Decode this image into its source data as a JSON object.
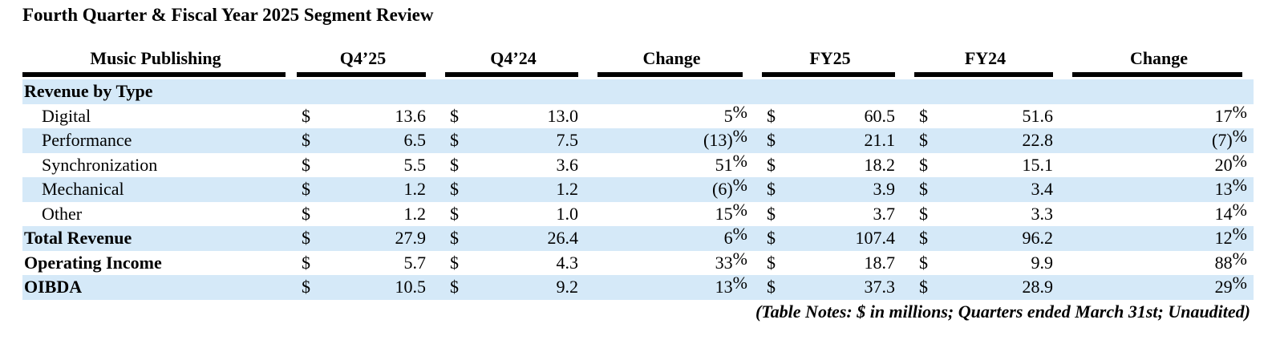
{
  "title": "Fourth Quarter & Fiscal Year 2025 Segment Review",
  "colors": {
    "row_shade": "#D5E9F8",
    "rule": "#000000",
    "background": "#FFFFFF"
  },
  "table": {
    "currency_symbol": "$",
    "columns": [
      {
        "key": "label",
        "label": "Music Publishing",
        "currency": false
      },
      {
        "key": "q4_25",
        "label": "Q4’25",
        "currency": true
      },
      {
        "key": "q4_24",
        "label": "Q4’24",
        "currency": true
      },
      {
        "key": "change_q",
        "label": "Change",
        "currency": false
      },
      {
        "key": "fy25",
        "label": "FY25",
        "currency": true
      },
      {
        "key": "fy24",
        "label": "FY24",
        "currency": true
      },
      {
        "key": "change_fy",
        "label": "Change",
        "currency": false
      }
    ],
    "rows": [
      {
        "label": "Revenue by Type",
        "style": "section",
        "values": [
          "",
          "",
          "",
          "",
          "",
          ""
        ]
      },
      {
        "label": "Digital",
        "style": "item",
        "values": [
          "13.6",
          "13.0",
          "5%",
          "60.5",
          "51.6",
          "17%"
        ]
      },
      {
        "label": "Performance",
        "style": "item",
        "values": [
          "6.5",
          "7.5",
          "(13)%",
          "21.1",
          "22.8",
          "(7)%"
        ]
      },
      {
        "label": "Synchronization",
        "style": "item",
        "values": [
          "5.5",
          "3.6",
          "51%",
          "18.2",
          "15.1",
          "20%"
        ]
      },
      {
        "label": "Mechanical",
        "style": "item",
        "values": [
          "1.2",
          "1.2",
          "(6)%",
          "3.9",
          "3.4",
          "13%"
        ]
      },
      {
        "label": "Other",
        "style": "item",
        "values": [
          "1.2",
          "1.0",
          "15%",
          "3.7",
          "3.3",
          "14%"
        ]
      },
      {
        "label": "Total Revenue",
        "style": "total",
        "values": [
          "27.9",
          "26.4",
          "6%",
          "107.4",
          "96.2",
          "12%"
        ]
      },
      {
        "label": "Operating Income",
        "style": "total",
        "values": [
          "5.7",
          "4.3",
          "33%",
          "18.7",
          "9.9",
          "88%"
        ]
      },
      {
        "label": "OIBDA",
        "style": "total",
        "values": [
          "10.5",
          "9.2",
          "13%",
          "37.3",
          "28.9",
          "29%"
        ]
      }
    ],
    "notes": "(Table Notes: $ in millions; Quarters ended March 31st; Unaudited)"
  }
}
